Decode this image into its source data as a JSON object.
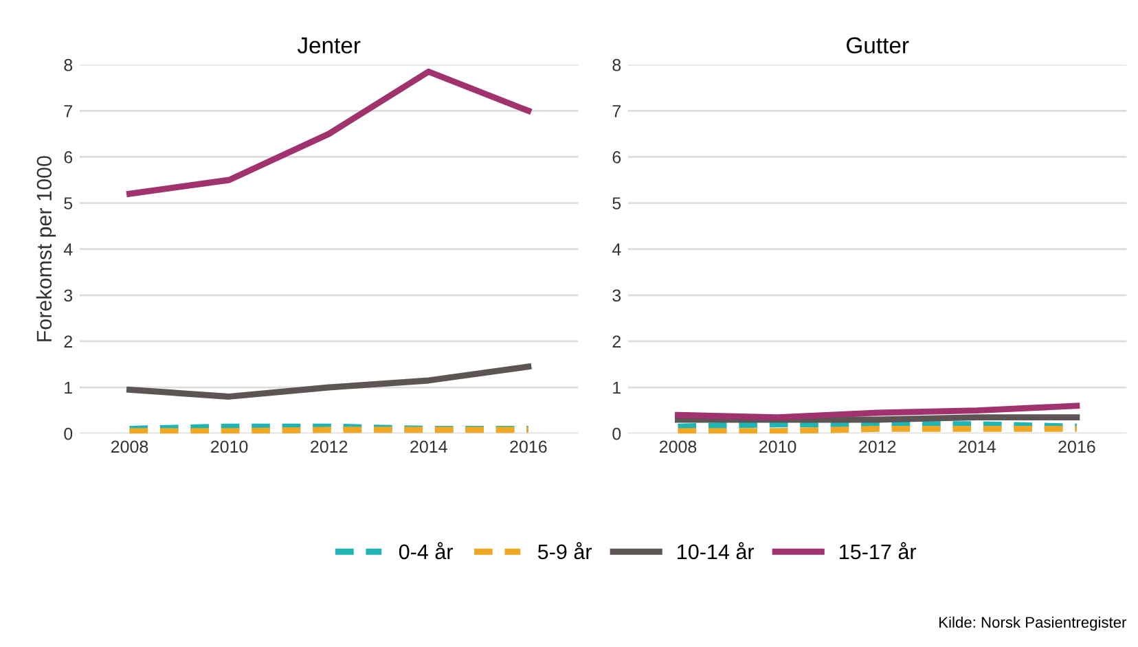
{
  "chart_data": [
    {
      "type": "line",
      "title": "Jenter",
      "ylabel": "Forekomst per 1000",
      "x": [
        2008,
        2010,
        2012,
        2014,
        2016
      ],
      "xlim": [
        2007,
        2017
      ],
      "xticks": [
        2008,
        2010,
        2012,
        2014,
        2016
      ],
      "ylim": [
        0,
        8
      ],
      "yticks": [
        0,
        1,
        2,
        3,
        4,
        5,
        6,
        7,
        8
      ],
      "grid": "y",
      "legend": "bottom",
      "series": [
        {
          "name": "0-4 år",
          "color": "#1fb5b5",
          "line_style": "dashed",
          "values": [
            0.1,
            0.15,
            0.15,
            0.1,
            0.1
          ]
        },
        {
          "name": "5-9 år",
          "color": "#f0a824",
          "line_style": "dashed",
          "values": [
            0.05,
            0.05,
            0.08,
            0.08,
            0.08
          ]
        },
        {
          "name": "10-14 år",
          "color": "#5c5553",
          "line_style": "solid",
          "values": [
            0.95,
            0.8,
            1.0,
            1.15,
            1.45
          ]
        },
        {
          "name": "15-17 år",
          "color": "#a0326e",
          "line_style": "solid",
          "values": [
            5.2,
            5.5,
            6.5,
            7.85,
            7.0
          ]
        }
      ]
    },
    {
      "type": "line",
      "title": "Gutter",
      "x": [
        2008,
        2010,
        2012,
        2014,
        2016
      ],
      "xlim": [
        2007,
        2017
      ],
      "xticks": [
        2008,
        2010,
        2012,
        2014,
        2016
      ],
      "ylim": [
        0,
        8
      ],
      "yticks": [
        0,
        1,
        2,
        3,
        4,
        5,
        6,
        7,
        8
      ],
      "grid": "y",
      "annotations": [
        "Kilde: Norsk Pasientregister"
      ],
      "series": [
        {
          "name": "0-4 år",
          "color": "#1fb5b5",
          "line_style": "dashed",
          "values": [
            0.15,
            0.2,
            0.2,
            0.2,
            0.15
          ]
        },
        {
          "name": "5-9 år",
          "color": "#f0a824",
          "line_style": "dashed",
          "values": [
            0.05,
            0.05,
            0.1,
            0.1,
            0.1
          ]
        },
        {
          "name": "10-14 år",
          "color": "#5c5553",
          "line_style": "solid",
          "values": [
            0.3,
            0.3,
            0.3,
            0.35,
            0.35
          ]
        },
        {
          "name": "15-17 år",
          "color": "#a0326e",
          "line_style": "solid",
          "values": [
            0.4,
            0.35,
            0.45,
            0.5,
            0.6
          ]
        }
      ]
    }
  ]
}
